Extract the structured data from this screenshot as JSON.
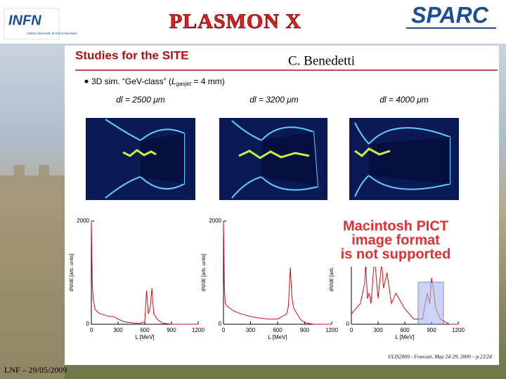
{
  "header": {
    "logo_left": "INFN",
    "logo_left_sub": "Istituto Nazionale di Fisica Nucleare",
    "title": "PLASMON X",
    "logo_right": "SPARC"
  },
  "slide": {
    "heading": "Studies for the SITE",
    "author": "C. Benedetti",
    "bullet": {
      "text": "3D sim. “GeV-class” (",
      "var": "L",
      "sub": "gasjet",
      "rest": " = 4 mm)"
    },
    "panel_labels": [
      "dl = 2500 μm",
      "dl = 3200 μm",
      "dl = 4000 μm"
    ],
    "pict_notice": [
      "Macintosh PICT",
      "image format",
      "is not supported"
    ],
    "citation": "ULIS2009 - Frascati, May 24-29, 2009 – p.22/24"
  },
  "footer": "LNF – 29/05/2009",
  "chart_data": [
    {
      "type": "line",
      "xlabel": "L [MeV]",
      "ylabel": "dN/dE [arb. units]",
      "color": "#cc1111",
      "x": [
        0,
        10,
        20,
        40,
        60,
        100,
        150,
        200,
        250,
        300,
        350,
        400,
        450,
        500,
        550,
        600,
        620,
        640,
        660,
        680,
        700,
        750,
        800,
        900,
        1200
      ],
      "values": [
        2000,
        800,
        500,
        300,
        250,
        200,
        180,
        150,
        150,
        100,
        60,
        40,
        30,
        20,
        20,
        50,
        650,
        200,
        300,
        700,
        200,
        80,
        20,
        0,
        0
      ],
      "xlim": [
        0,
        1200
      ],
      "ylim": [
        0,
        2000
      ],
      "xticks": [
        0,
        300,
        600,
        900,
        1200
      ],
      "yticks": [
        0,
        2000
      ]
    },
    {
      "type": "line",
      "xlabel": "L [MeV]",
      "ylabel": "dN/dE [arb. units]",
      "color": "#cc1111",
      "x": [
        0,
        10,
        20,
        40,
        80,
        120,
        200,
        300,
        400,
        500,
        600,
        650,
        700,
        720,
        740,
        760,
        780,
        800,
        850,
        900,
        1000,
        1200
      ],
      "values": [
        2000,
        700,
        400,
        350,
        300,
        250,
        200,
        150,
        120,
        100,
        100,
        150,
        200,
        350,
        1100,
        500,
        300,
        250,
        100,
        30,
        0,
        0
      ],
      "xlim": [
        0,
        1200
      ],
      "ylim": [
        0,
        2000
      ],
      "xticks": [
        0,
        300,
        600,
        900,
        1200
      ],
      "yticks": [
        0,
        2000
      ]
    },
    {
      "type": "line",
      "xlabel": "L [MeV]",
      "ylabel": "dN/dE [arb. units]",
      "color": "#cc1111",
      "x": [
        0,
        50,
        100,
        150,
        160,
        180,
        200,
        220,
        260,
        300,
        340,
        360,
        400,
        450,
        500,
        600,
        700,
        800,
        850,
        880,
        900,
        920,
        950,
        1000,
        1100,
        1200
      ],
      "values": [
        200,
        300,
        400,
        800,
        1200,
        500,
        600,
        400,
        1300,
        500,
        1200,
        700,
        1000,
        400,
        600,
        300,
        100,
        100,
        600,
        400,
        900,
        700,
        300,
        100,
        0,
        0
      ],
      "xlim": [
        0,
        1200
      ],
      "ylim": [
        0,
        2000
      ],
      "xticks": [
        0,
        300,
        600,
        900,
        1200
      ],
      "yticks": [
        0
      ]
    }
  ]
}
